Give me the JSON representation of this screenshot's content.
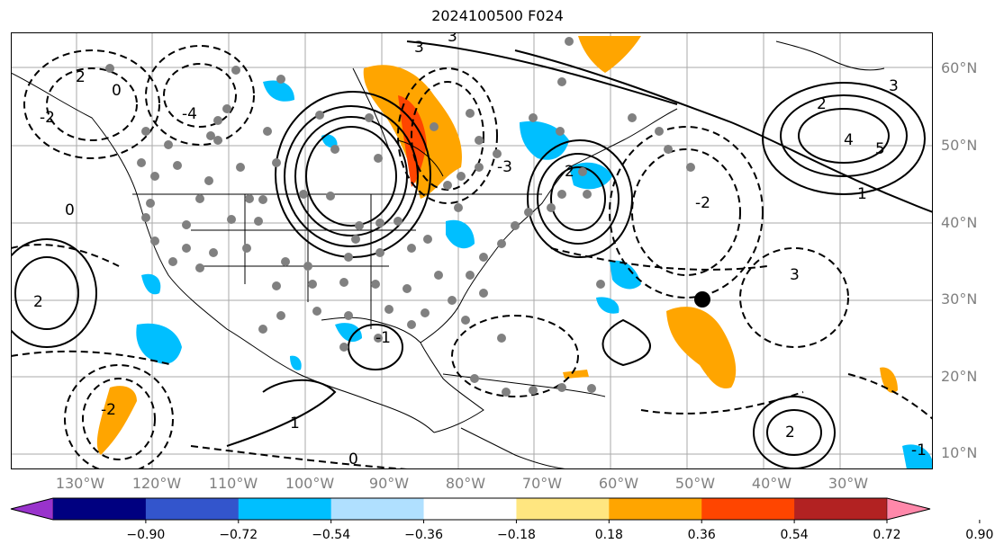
{
  "title": "2024100500 F024",
  "map": {
    "lat_labels": [
      "60°N",
      "50°N",
      "40°N",
      "30°N",
      "20°N",
      "10°N"
    ],
    "lon_labels": [
      "130°W",
      "120°W",
      "110°W",
      "100°W",
      "90°W",
      "80°W",
      "70°W",
      "60°W",
      "50°W",
      "40°W",
      "30°W"
    ],
    "contour_labels": [
      "3",
      "3",
      "2",
      "0",
      "-2",
      "-4",
      "-3",
      "2",
      "4",
      "5",
      "3",
      "1",
      "0",
      "-1",
      "-2",
      "2",
      "2",
      "1",
      "-1",
      "0",
      "3",
      "-2",
      "2"
    ],
    "marker": "black-dot"
  },
  "colorbar": {
    "ticks": [
      "−0.90",
      "−0.72",
      "−0.54",
      "−0.36",
      "−0.18",
      "0.18",
      "0.36",
      "0.54",
      "0.72",
      "0.90"
    ],
    "colors": [
      "#9933cc",
      "#000080",
      "#3355cc",
      "#00bfff",
      "#b0e0ff",
      "#ffffff",
      "#ffe680",
      "#ffa500",
      "#ff4500",
      "#b22222",
      "#ff88aa"
    ],
    "extend": "both"
  }
}
